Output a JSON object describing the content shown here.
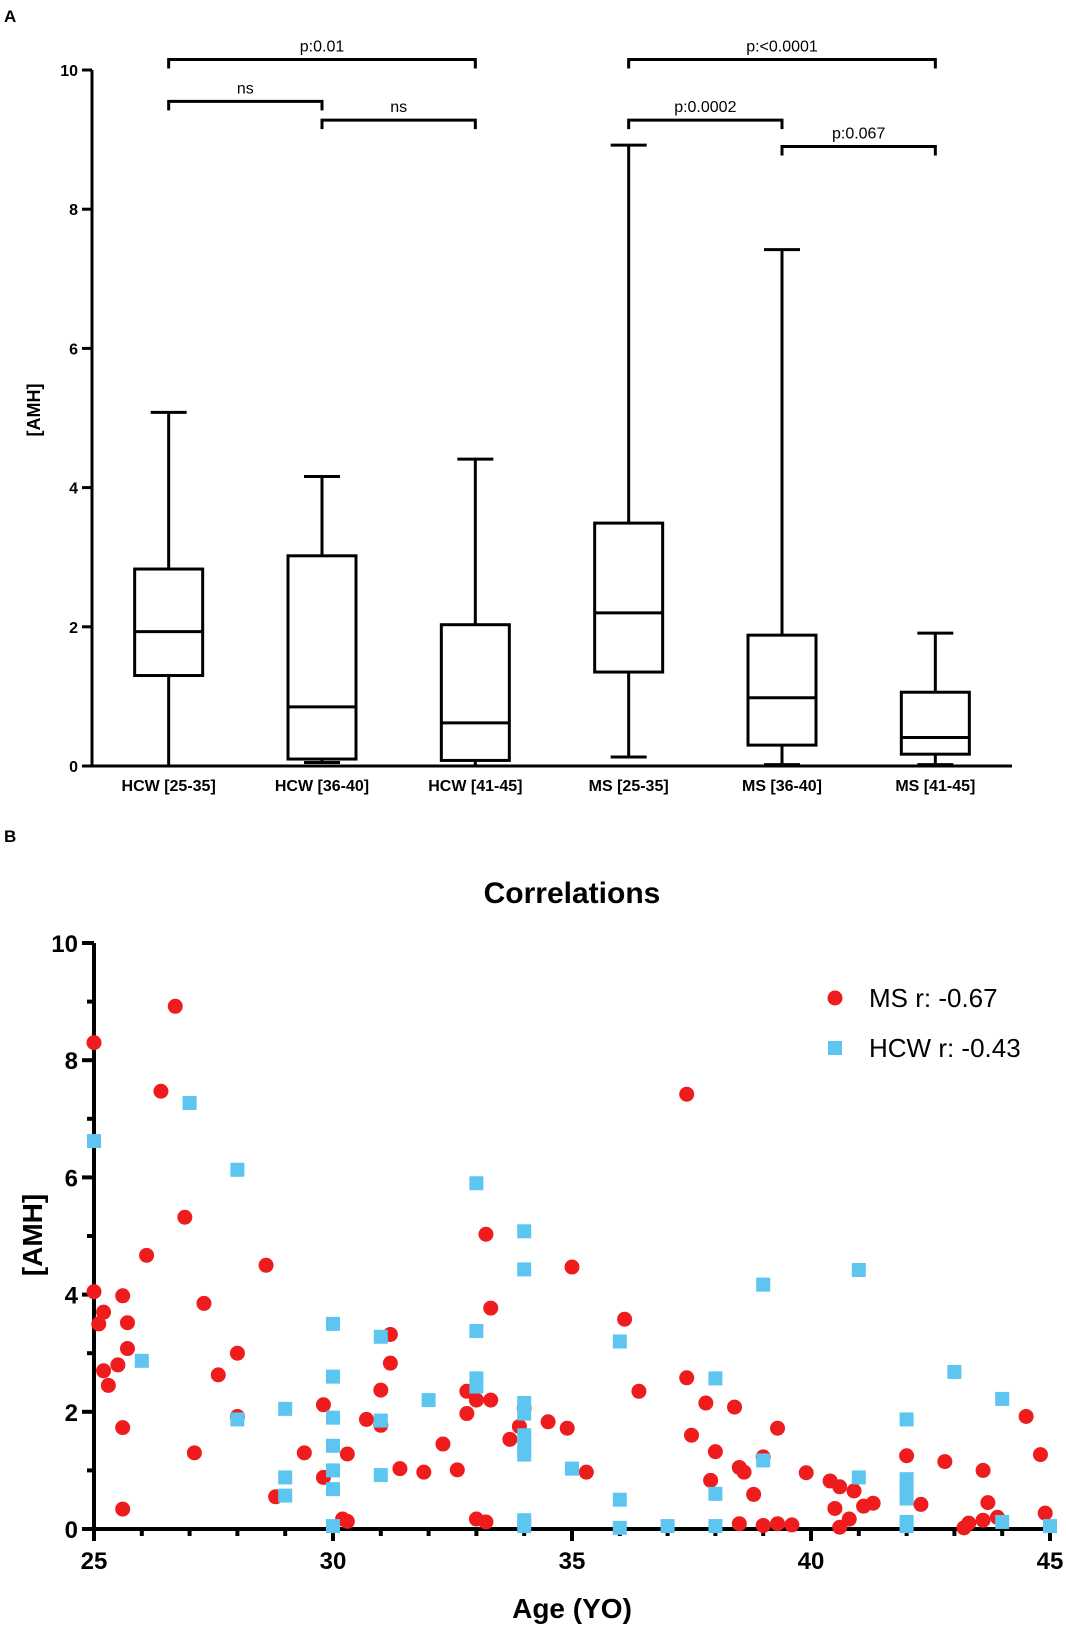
{
  "chart_data": [
    {
      "type": "box",
      "panel_label": "A",
      "ylabel": "[AMH]",
      "ylim": [
        0,
        10
      ],
      "yticks": [
        "0",
        "2",
        "4",
        "6",
        "8",
        "10"
      ],
      "categories": [
        "HCW [25-35]",
        "HCW [36-40]",
        "HCW [41-45]",
        "MS [25-35]",
        "MS [36-40]",
        "MS [41-45]"
      ],
      "boxes": [
        {
          "min": 0.0,
          "q1": 1.3,
          "median": 1.93,
          "q3": 2.83,
          "max": 5.08
        },
        {
          "min": 0.05,
          "q1": 0.1,
          "median": 0.85,
          "q3": 3.02,
          "max": 4.16
        },
        {
          "min": 0.0,
          "q1": 0.08,
          "median": 0.62,
          "q3": 2.03,
          "max": 4.41
        },
        {
          "min": 0.13,
          "q1": 1.35,
          "median": 2.2,
          "q3": 3.49,
          "max": 8.92
        },
        {
          "min": 0.02,
          "q1": 0.3,
          "median": 0.98,
          "q3": 1.88,
          "max": 7.42
        },
        {
          "min": 0.02,
          "q1": 0.17,
          "median": 0.41,
          "q3": 1.06,
          "max": 1.91
        }
      ],
      "comparisons": [
        {
          "from": 0,
          "to": 2,
          "label": "p:0.01",
          "level": 10.15
        },
        {
          "from": 0,
          "to": 1,
          "label": "ns",
          "level": 9.55
        },
        {
          "from": 1,
          "to": 2,
          "label": "ns",
          "level": 9.28
        },
        {
          "from": 3,
          "to": 5,
          "label": "p:<0.0001",
          "level": 10.15
        },
        {
          "from": 3,
          "to": 4,
          "label": "p:0.0002",
          "level": 9.28
        },
        {
          "from": 4,
          "to": 5,
          "label": "p:0.067",
          "level": 8.9
        }
      ]
    },
    {
      "type": "scatter",
      "panel_label": "B",
      "title": "Correlations",
      "xlabel": "Age (YO)",
      "ylabel": "[AMH]",
      "xlim": [
        25,
        45
      ],
      "ylim": [
        0,
        10
      ],
      "xticks": [
        "25",
        "30",
        "35",
        "40",
        "45"
      ],
      "yticks": [
        "0",
        "2",
        "4",
        "6",
        "8",
        "10"
      ],
      "series": [
        {
          "name": "MS",
          "legend_label": "MS  r: -0.67",
          "color": "#ee1c1c",
          "marker": "circle",
          "points": [
            [
              25.0,
              8.3
            ],
            [
              25.0,
              4.05
            ],
            [
              25.1,
              3.5
            ],
            [
              25.2,
              3.7
            ],
            [
              25.2,
              2.7
            ],
            [
              25.3,
              2.45
            ],
            [
              25.5,
              2.8
            ],
            [
              25.6,
              3.98
            ],
            [
              25.6,
              1.73
            ],
            [
              25.7,
              3.52
            ],
            [
              25.7,
              3.08
            ],
            [
              25.6,
              0.34
            ],
            [
              26.1,
              4.67
            ],
            [
              26.4,
              7.47
            ],
            [
              26.7,
              8.92
            ],
            [
              26.9,
              5.32
            ],
            [
              27.1,
              1.3
            ],
            [
              27.3,
              3.85
            ],
            [
              27.6,
              2.63
            ],
            [
              28.0,
              1.92
            ],
            [
              28.0,
              3.0
            ],
            [
              28.6,
              4.5
            ],
            [
              28.8,
              0.55
            ],
            [
              29.4,
              1.3
            ],
            [
              29.8,
              0.88
            ],
            [
              29.8,
              2.12
            ],
            [
              30.2,
              0.17
            ],
            [
              30.3,
              0.13
            ],
            [
              30.3,
              1.28
            ],
            [
              30.7,
              1.87
            ],
            [
              31.0,
              2.37
            ],
            [
              31.0,
              1.77
            ],
            [
              31.2,
              3.32
            ],
            [
              31.2,
              2.83
            ],
            [
              31.4,
              1.03
            ],
            [
              31.9,
              0.97
            ],
            [
              32.3,
              1.45
            ],
            [
              32.6,
              1.01
            ],
            [
              32.8,
              2.35
            ],
            [
              32.8,
              1.97
            ],
            [
              33.0,
              2.2
            ],
            [
              33.0,
              0.17
            ],
            [
              33.2,
              5.03
            ],
            [
              33.2,
              0.12
            ],
            [
              33.3,
              2.2
            ],
            [
              33.3,
              3.77
            ],
            [
              33.7,
              1.53
            ],
            [
              33.9,
              1.75
            ],
            [
              34.0,
              2.06
            ],
            [
              34.5,
              1.83
            ],
            [
              34.9,
              1.72
            ],
            [
              35.0,
              4.47
            ],
            [
              35.3,
              0.97
            ],
            [
              36.1,
              3.58
            ],
            [
              36.4,
              2.35
            ],
            [
              37.4,
              7.42
            ],
            [
              37.4,
              2.58
            ],
            [
              37.5,
              1.6
            ],
            [
              37.8,
              2.15
            ],
            [
              37.9,
              0.83
            ],
            [
              38.0,
              1.32
            ],
            [
              38.4,
              2.08
            ],
            [
              38.5,
              1.05
            ],
            [
              38.6,
              0.97
            ],
            [
              38.5,
              0.09
            ],
            [
              38.8,
              0.59
            ],
            [
              39.0,
              0.06
            ],
            [
              39.0,
              1.23
            ],
            [
              39.3,
              1.72
            ],
            [
              39.3,
              0.09
            ],
            [
              39.6,
              0.07
            ],
            [
              39.9,
              0.96
            ],
            [
              40.4,
              0.82
            ],
            [
              40.5,
              0.35
            ],
            [
              40.6,
              0.72
            ],
            [
              40.6,
              0.03
            ],
            [
              40.8,
              0.17
            ],
            [
              40.9,
              0.65
            ],
            [
              41.1,
              0.39
            ],
            [
              41.3,
              0.44
            ],
            [
              42.0,
              1.25
            ],
            [
              42.3,
              0.42
            ],
            [
              42.8,
              1.15
            ],
            [
              43.2,
              0.02
            ],
            [
              43.3,
              0.1
            ],
            [
              43.6,
              1.0
            ],
            [
              43.7,
              0.45
            ],
            [
              43.9,
              0.2
            ],
            [
              43.6,
              0.15
            ],
            [
              44.5,
              1.92
            ],
            [
              44.8,
              1.27
            ],
            [
              44.9,
              0.27
            ]
          ]
        },
        {
          "name": "HCW",
          "legend_label": "HCW r: -0.43",
          "color": "#5cc6f0",
          "marker": "square",
          "points": [
            [
              25.0,
              6.62
            ],
            [
              26.0,
              2.87
            ],
            [
              27.0,
              7.27
            ],
            [
              28.0,
              6.13
            ],
            [
              28.0,
              1.87
            ],
            [
              29.0,
              2.05
            ],
            [
              29.0,
              0.88
            ],
            [
              29.0,
              0.57
            ],
            [
              30.0,
              3.5
            ],
            [
              30.0,
              2.6
            ],
            [
              30.0,
              1.9
            ],
            [
              30.0,
              1.42
            ],
            [
              30.0,
              1.0
            ],
            [
              30.0,
              0.68
            ],
            [
              30.0,
              0.05
            ],
            [
              31.0,
              3.28
            ],
            [
              31.0,
              1.85
            ],
            [
              31.0,
              0.92
            ],
            [
              32.0,
              2.2
            ],
            [
              33.0,
              5.9
            ],
            [
              33.0,
              3.38
            ],
            [
              33.0,
              2.57
            ],
            [
              33.0,
              2.43
            ],
            [
              34.0,
              5.08
            ],
            [
              34.0,
              4.43
            ],
            [
              34.0,
              2.15
            ],
            [
              34.0,
              1.97
            ],
            [
              34.0,
              1.6
            ],
            [
              34.0,
              1.45
            ],
            [
              34.0,
              1.27
            ],
            [
              34.0,
              0.15
            ],
            [
              34.0,
              0.05
            ],
            [
              35.0,
              1.03
            ],
            [
              36.0,
              3.2
            ],
            [
              36.0,
              0.5
            ],
            [
              36.0,
              0.02
            ],
            [
              37.0,
              0.05
            ],
            [
              38.0,
              2.57
            ],
            [
              38.0,
              0.6
            ],
            [
              38.0,
              0.05
            ],
            [
              39.0,
              4.17
            ],
            [
              39.0,
              1.17
            ],
            [
              41.0,
              4.42
            ],
            [
              41.0,
              0.88
            ],
            [
              42.0,
              1.87
            ],
            [
              42.0,
              0.85
            ],
            [
              42.0,
              0.67
            ],
            [
              42.0,
              0.52
            ],
            [
              42.0,
              0.12
            ],
            [
              42.0,
              0.05
            ],
            [
              43.0,
              2.68
            ],
            [
              44.0,
              2.22
            ],
            [
              44.0,
              0.12
            ],
            [
              45.0,
              0.05
            ]
          ]
        }
      ]
    }
  ]
}
